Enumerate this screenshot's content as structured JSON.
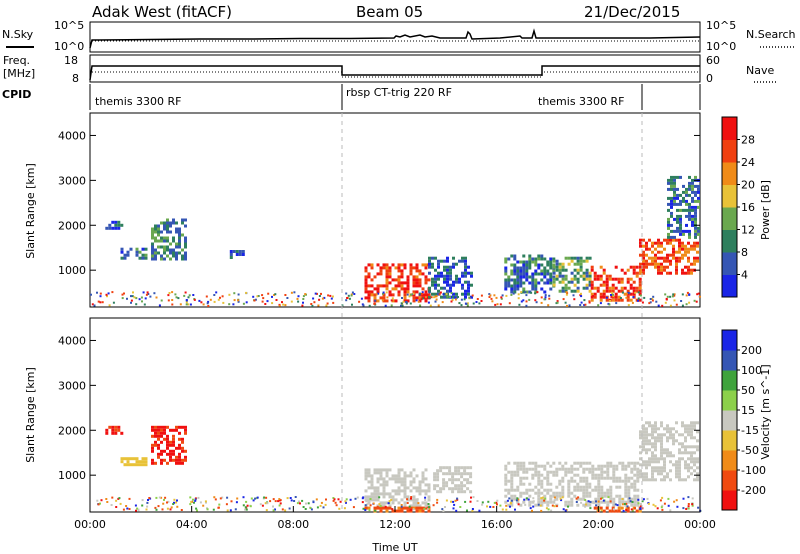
{
  "header": {
    "station": "Adak West (fitACF)",
    "beam": "Beam 05",
    "date": "21/Dec/2015"
  },
  "side_labels": {
    "nsky": "N.Sky",
    "nsearch": "N.Search",
    "freq_line1": "Freq.",
    "freq_line2": "[MHz]",
    "nave": "Nave",
    "cpid": "CPID"
  },
  "aux_ticks": {
    "nsky_left": [
      "10^5",
      "10^0"
    ],
    "nsearch_right": [
      "10^5",
      "10^0"
    ],
    "freq_left": [
      "18",
      "8"
    ],
    "nave_right": [
      "60",
      "0"
    ]
  },
  "cpid_segments": [
    {
      "label": "themis 3300 RF",
      "start": 0,
      "end": 10
    },
    {
      "label": "rbsp CT-trig 220 RF",
      "start": 10,
      "end": 18
    },
    {
      "label": "themis 3300 RF",
      "start": 18,
      "end": 24
    }
  ],
  "chart_data": [
    {
      "type": "heatmap",
      "title": "Power",
      "ylabel": "Slant Range [km]",
      "xlabel": "",
      "xlim": [
        0,
        24
      ],
      "ylim": [
        180,
        4500
      ],
      "yticks": [
        1000,
        2000,
        3000,
        4000
      ],
      "colorbar": {
        "label": "Power [dB]",
        "range": [
          0,
          32
        ],
        "ticks": [
          "4",
          "8",
          "12",
          "16",
          "20",
          "24",
          "28"
        ],
        "colors": [
          "#1a25e6",
          "#3556b4",
          "#2e7f5e",
          "#6aa84f",
          "#e8c238",
          "#f08b18",
          "#f04010",
          "#f01010"
        ]
      },
      "regions": [
        {
          "x": [
            0.6,
            1.3
          ],
          "y": [
            1950,
            2100
          ],
          "value": 6
        },
        {
          "x": [
            1.2,
            2.2
          ],
          "y": [
            1250,
            1500
          ],
          "value": 8
        },
        {
          "x": [
            2.4,
            3.8
          ],
          "y": [
            1250,
            2150
          ],
          "value": 10
        },
        {
          "x": [
            5.5,
            6.0
          ],
          "y": [
            1300,
            1450
          ],
          "value": 6
        },
        {
          "x": [
            10.8,
            13.3
          ],
          "y": [
            300,
            1150
          ],
          "value": 28
        },
        {
          "x": [
            13.3,
            15.0
          ],
          "y": [
            400,
            1300
          ],
          "value": 6
        },
        {
          "x": [
            16.3,
            18.2
          ],
          "y": [
            500,
            1350
          ],
          "value": 8
        },
        {
          "x": [
            18.2,
            19.7
          ],
          "y": [
            500,
            1300
          ],
          "value": 12
        },
        {
          "x": [
            19.7,
            21.6
          ],
          "y": [
            300,
            1100
          ],
          "value": 28
        },
        {
          "x": [
            21.6,
            23.9
          ],
          "y": [
            900,
            1700
          ],
          "value": 26
        },
        {
          "x": [
            22.7,
            23.9
          ],
          "y": [
            1700,
            3100
          ],
          "value": 8
        }
      ]
    },
    {
      "type": "heatmap",
      "title": "Velocity",
      "ylabel": "Slant Range [km]",
      "xlabel": "Time UT",
      "xlim": [
        0,
        24
      ],
      "ylim": [
        180,
        4500
      ],
      "yticks": [
        1000,
        2000,
        3000,
        4000
      ],
      "xticks": [
        "00:00",
        "04:00",
        "08:00",
        "12:00",
        "16:00",
        "20:00",
        "00:00"
      ],
      "colorbar": {
        "label": "Velocity [m s^-1]",
        "range": [
          -250,
          250
        ],
        "ticks": [
          "200",
          "100",
          "50",
          "15",
          "-15",
          "-50",
          "-100",
          "-200"
        ],
        "colors": [
          "#f01010",
          "#f04a10",
          "#f08b18",
          "#e8c238",
          "#c8c8c0",
          "#8cd04a",
          "#3fa33c",
          "#3556b4",
          "#1a25e6"
        ]
      },
      "regions": [
        {
          "x": [
            0.6,
            1.3
          ],
          "y": [
            1950,
            2100
          ],
          "value": -200
        },
        {
          "x": [
            2.4,
            3.8
          ],
          "y": [
            1250,
            2100
          ],
          "value": -200
        },
        {
          "x": [
            1.2,
            2.2
          ],
          "y": [
            1250,
            1400
          ],
          "value": -60
        },
        {
          "x": [
            10.8,
            13.3
          ],
          "y": [
            300,
            1150
          ],
          "value": 0
        },
        {
          "x": [
            13.5,
            15.0
          ],
          "y": [
            600,
            1200
          ],
          "value": 0
        },
        {
          "x": [
            16.3,
            21.6
          ],
          "y": [
            350,
            1300
          ],
          "value": 0
        },
        {
          "x": [
            21.6,
            23.9
          ],
          "y": [
            900,
            2200
          ],
          "value": 0
        },
        {
          "x": [
            10.8,
            13.3
          ],
          "y": [
            200,
            300
          ],
          "value": -150
        },
        {
          "x": [
            19.7,
            21.6
          ],
          "y": [
            200,
            300
          ],
          "value": -150
        }
      ]
    }
  ]
}
